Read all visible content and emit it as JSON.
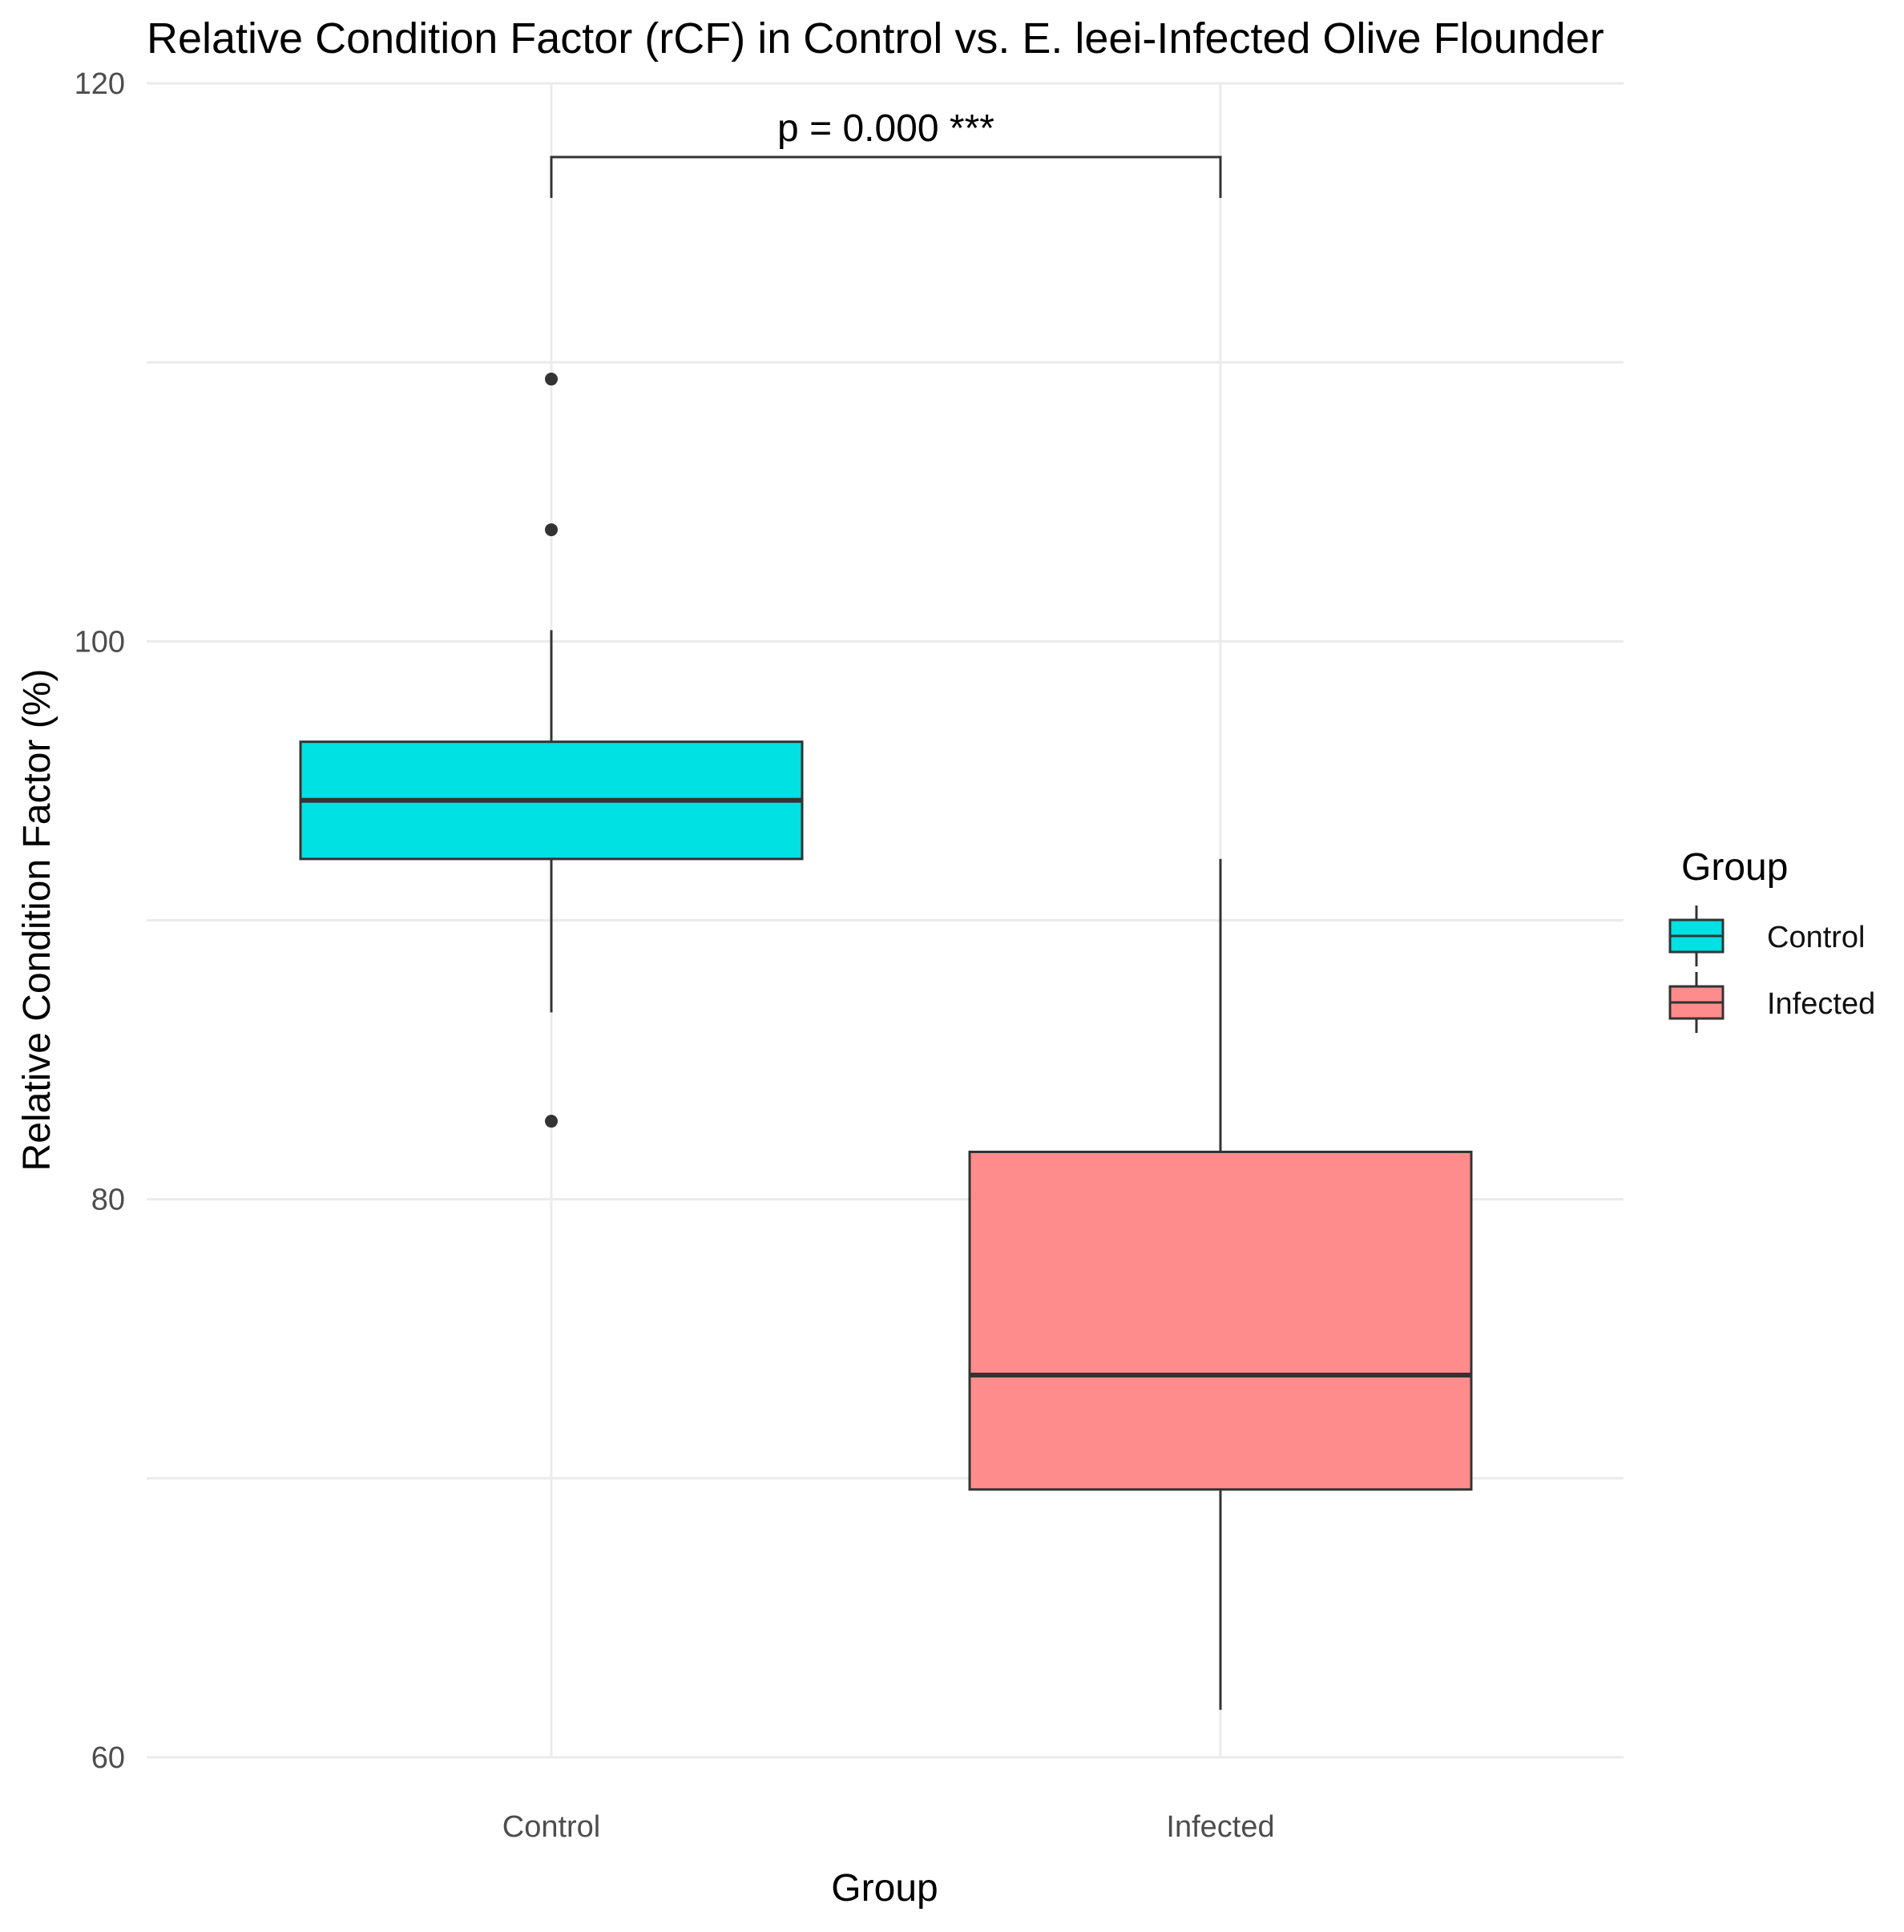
{
  "chart_data": {
    "type": "boxplot",
    "title": "Relative Condition Factor (rCF) in Control vs. E. leei-Infected Olive Flounder",
    "xlabel": "Group",
    "ylabel": "Relative Condition Factor (%)",
    "ylim": [
      60,
      120
    ],
    "yticks": [
      60,
      80,
      100,
      120
    ],
    "ytick_labels": [
      "60",
      "80",
      "100",
      "120"
    ],
    "categories": [
      "Control",
      "Infected"
    ],
    "grid": true,
    "legend": {
      "title": "Group",
      "placement": "right",
      "entries": [
        "Control",
        "Infected"
      ]
    },
    "boxes": [
      {
        "name": "Control",
        "color": "#00e1e3",
        "whisker_low": 86.7,
        "q1": 92.2,
        "median": 94.3,
        "q3": 96.4,
        "whisker_high": 100.4,
        "outliers": [
          109.4,
          104.0,
          82.8
        ]
      },
      {
        "name": "Infected",
        "color": "#ff8c8c",
        "whisker_low": 61.7,
        "q1": 69.6,
        "median": 73.7,
        "q3": 81.7,
        "whisker_high": 92.2,
        "outliers": []
      }
    ],
    "annotation": {
      "text": "p = 0.000 ***",
      "from": "Control",
      "to": "Infected"
    }
  }
}
